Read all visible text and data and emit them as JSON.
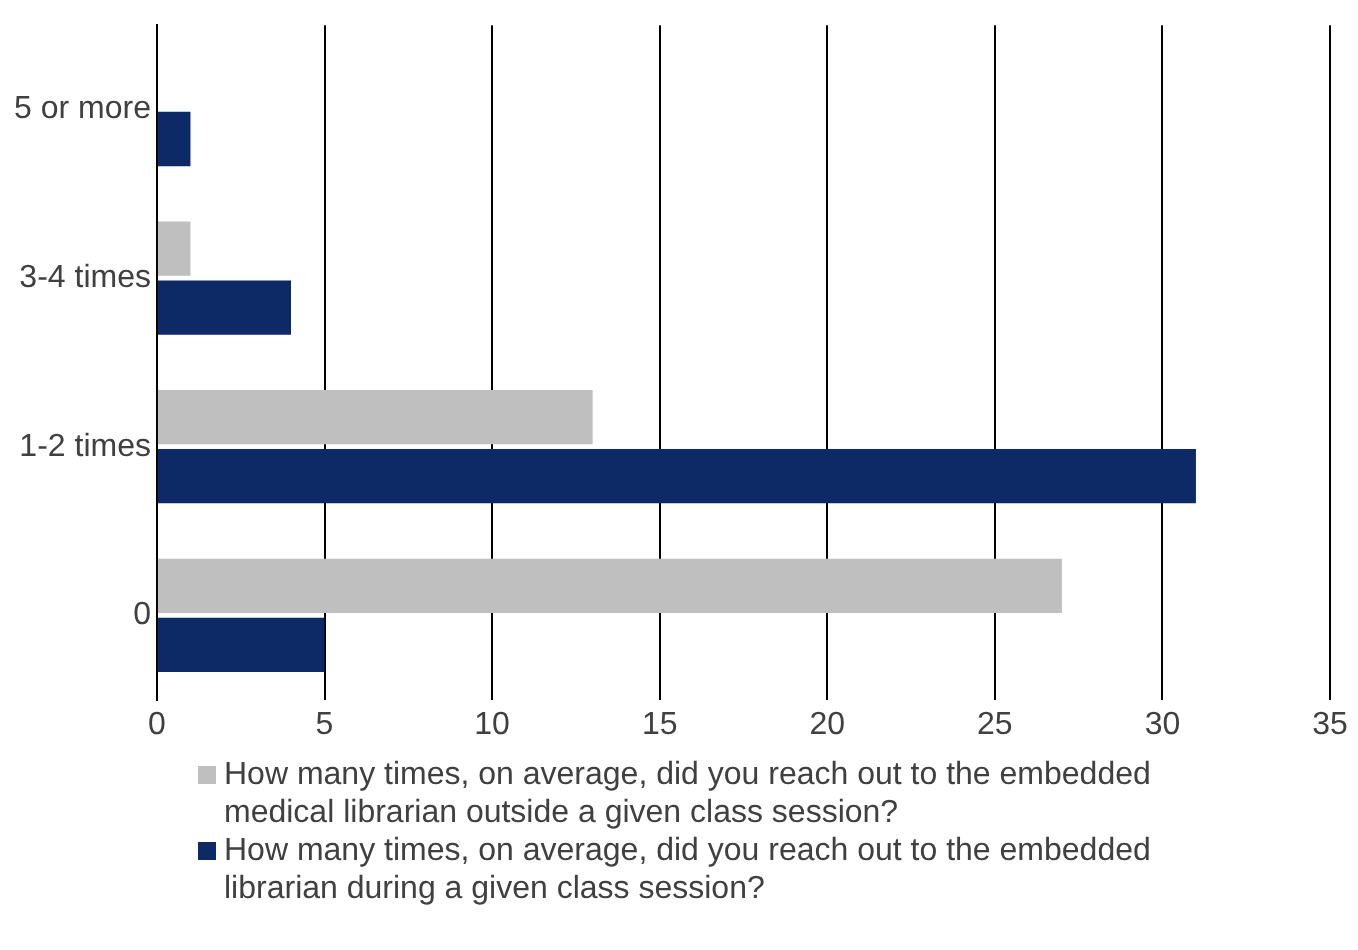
{
  "chart_data": {
    "type": "bar",
    "orientation": "horizontal",
    "categories": [
      "5 or more",
      "3-4 times",
      "1-2 times",
      "0"
    ],
    "series": [
      {
        "name": "How many times, on average, did you reach out to the embedded medical librarian outside a given class session?",
        "color": "#bfbfbf",
        "values": [
          0,
          1,
          13,
          27
        ]
      },
      {
        "name": "How many times, on average, did you reach out to the embedded librarian during a given class session?",
        "color": "#0d2a66",
        "values": [
          1,
          4,
          31,
          5
        ]
      }
    ],
    "xlim": [
      0,
      35
    ],
    "xticks": [
      0,
      5,
      10,
      15,
      20,
      25,
      30,
      35
    ],
    "grid": "x",
    "legend": "bottom"
  }
}
